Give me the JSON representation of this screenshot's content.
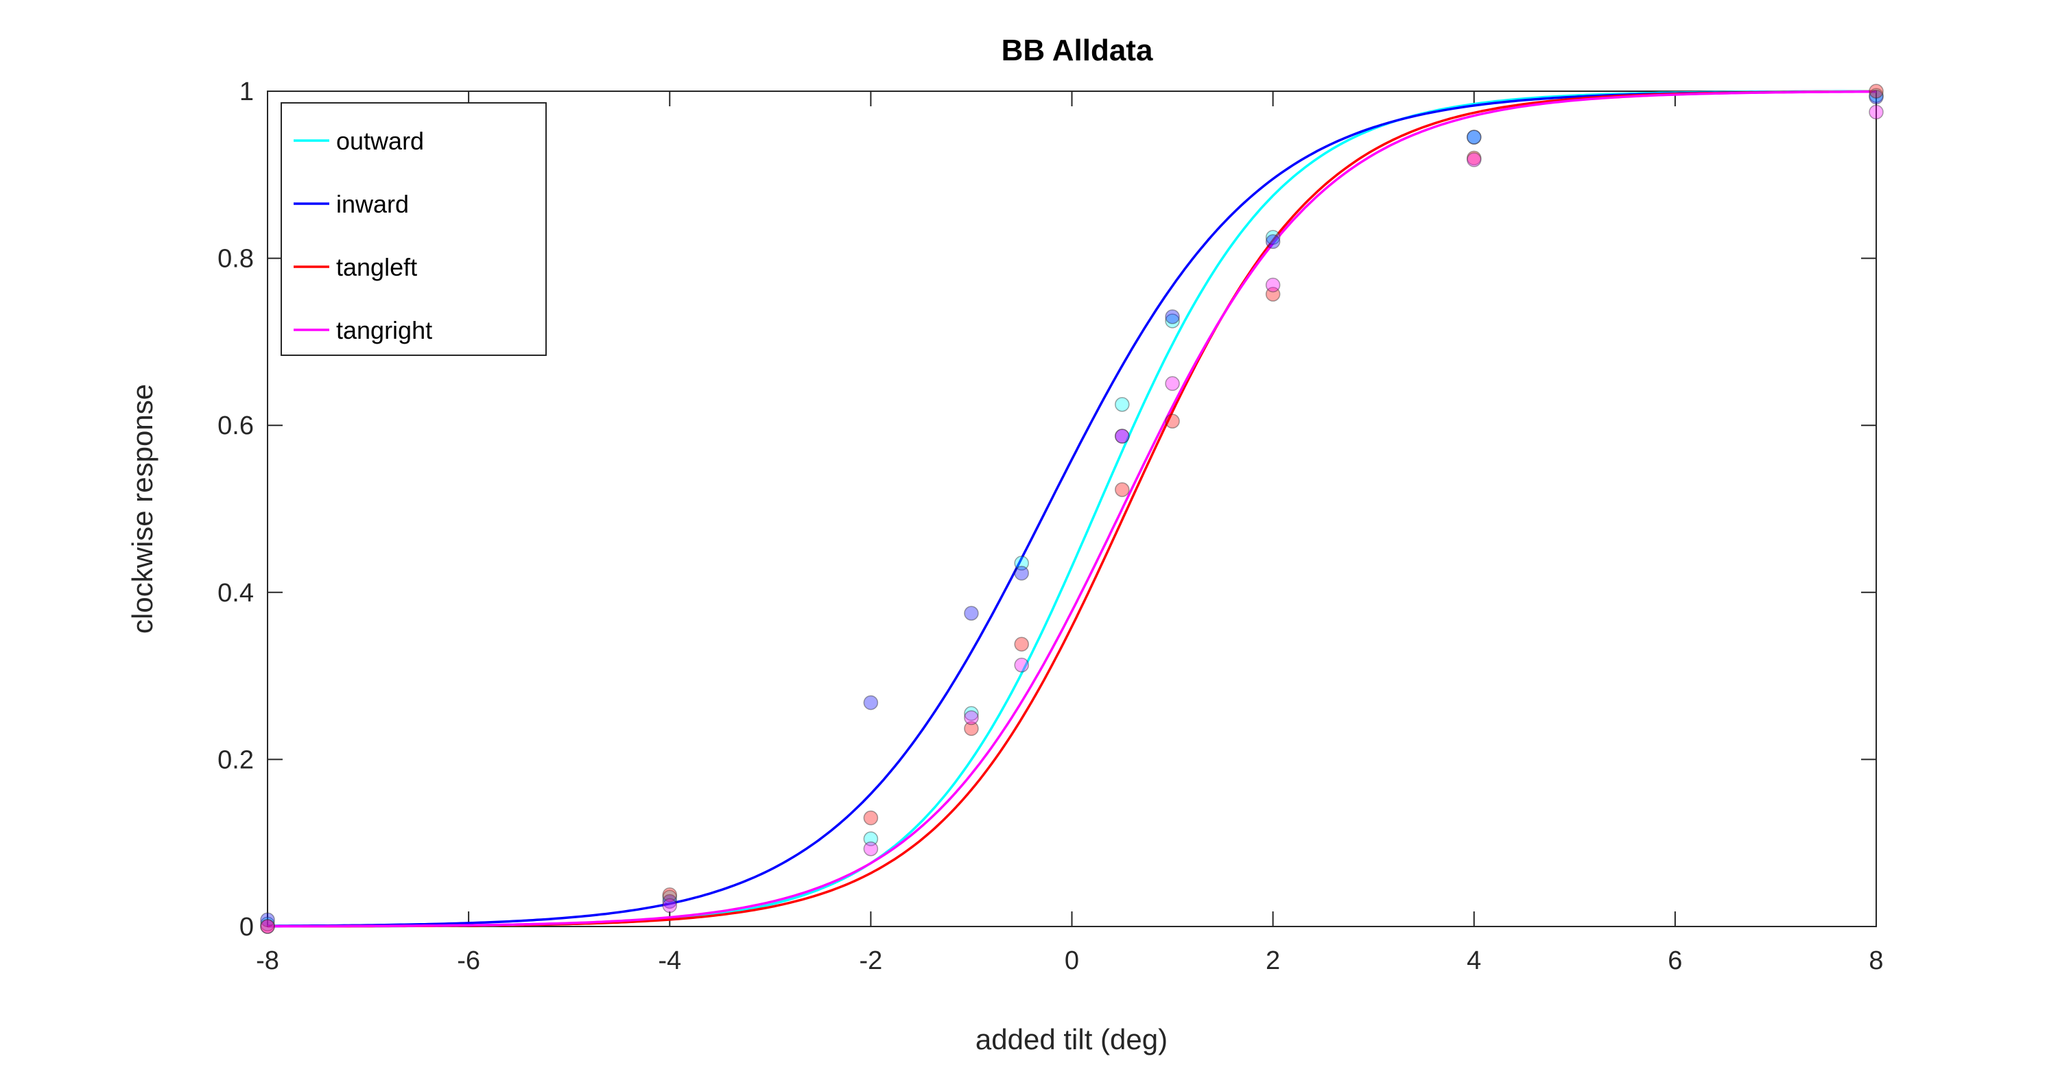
{
  "chart_data": {
    "type": "scatter",
    "title": "BB Alldata",
    "xlabel": "added tilt (deg)",
    "ylabel": "clockwise response",
    "xlim": [
      -8,
      8
    ],
    "ylim": [
      0,
      1
    ],
    "xticks": [
      -8,
      -6,
      -4,
      -2,
      0,
      2,
      4,
      6,
      8
    ],
    "xtick_labels": [
      "-8",
      "-6",
      "-4",
      "-2",
      "0",
      "2",
      "4",
      "6",
      "8"
    ],
    "yticks": [
      0,
      0.2,
      0.4,
      0.6,
      0.8,
      1
    ],
    "ytick_labels": [
      "0",
      "0.2",
      "0.4",
      "0.6",
      "0.8",
      "1"
    ],
    "grid": false,
    "legend_position": "top-left",
    "x": [
      -8,
      -4,
      -2,
      -1,
      -0.5,
      0.5,
      1,
      2,
      4,
      8
    ],
    "series": [
      {
        "name": "outward",
        "color": "#00ffff",
        "values": [
          0.003,
          0.035,
          0.105,
          0.255,
          0.435,
          0.625,
          0.725,
          0.825,
          0.945,
          0.995
        ],
        "fit": {
          "model": "logistic",
          "mu": 0.25,
          "s": 0.9
        }
      },
      {
        "name": "inward",
        "color": "#0000ff",
        "values": [
          0.008,
          0.03,
          0.268,
          0.375,
          0.423,
          0.587,
          0.73,
          0.82,
          0.945,
          0.993
        ],
        "fit": {
          "model": "logistic",
          "mu": -0.25,
          "s": 1.05
        }
      },
      {
        "name": "tangleft",
        "color": "#ff0000",
        "values": [
          0.0,
          0.038,
          0.13,
          0.237,
          0.338,
          0.523,
          0.605,
          0.757,
          0.92,
          1.0
        ],
        "fit": {
          "model": "logistic",
          "mu": 0.55,
          "s": 0.95
        }
      },
      {
        "name": "tangright",
        "color": "#ff00ff",
        "values": [
          0.0,
          0.025,
          0.093,
          0.25,
          0.313,
          0.587,
          0.65,
          0.768,
          0.918,
          0.975
        ],
        "fit": {
          "model": "logistic",
          "mu": 0.5,
          "s": 1.0
        }
      }
    ]
  }
}
